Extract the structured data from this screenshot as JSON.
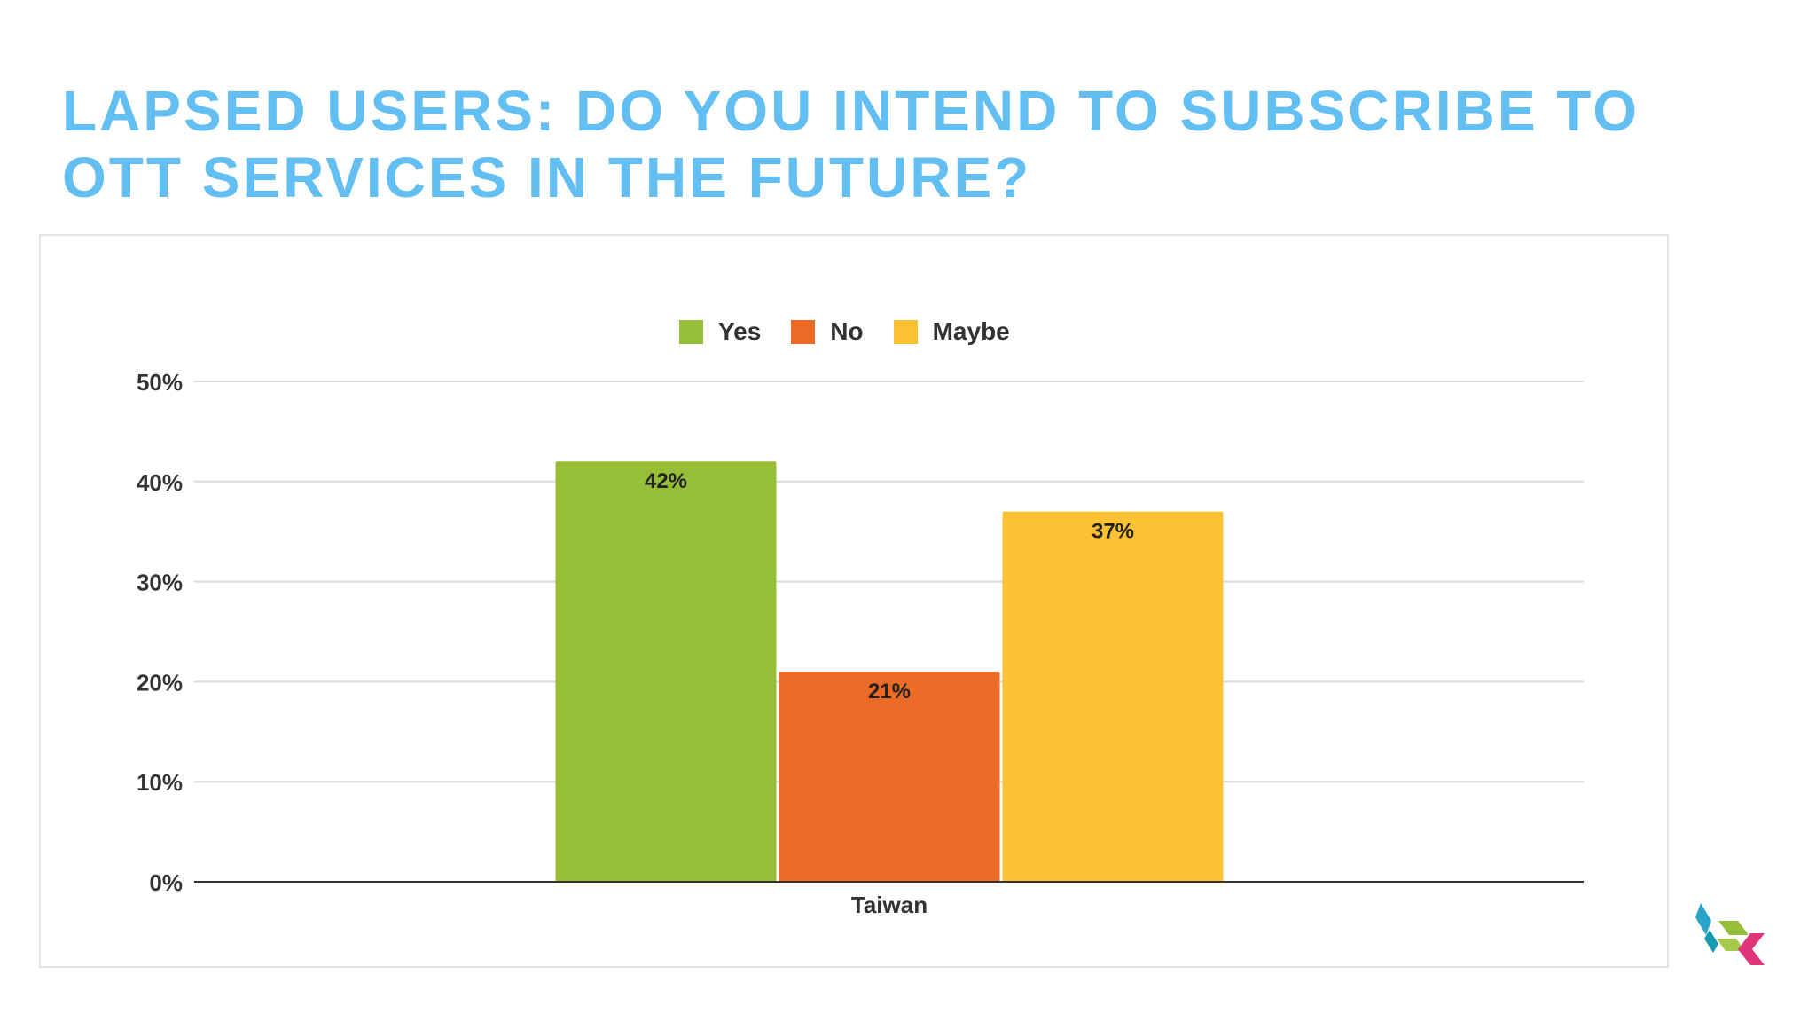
{
  "slide": {
    "title": "LAPSED USERS: DO YOU INTEND TO SUBSCRIBE TO OTT SERVICES IN THE FUTURE?"
  },
  "chart_data": {
    "type": "bar",
    "categories": [
      "Taiwan"
    ],
    "series": [
      {
        "name": "Yes",
        "values": [
          42
        ],
        "color": "#97be37",
        "label": "42%"
      },
      {
        "name": "No",
        "values": [
          21
        ],
        "color": "#eb6a26",
        "label": "21%"
      },
      {
        "name": "Maybe",
        "values": [
          37
        ],
        "color": "#fbc334",
        "label": "37%"
      }
    ],
    "yticks": [
      "0%",
      "10%",
      "20%",
      "30%",
      "40%",
      "50%"
    ],
    "ylim": [
      0,
      50
    ],
    "grid": true,
    "legend_position": "top-center"
  },
  "logo": {
    "icon": "company-logo-icon",
    "colors": [
      "#2aa3c8",
      "#97be37",
      "#e0357a"
    ]
  }
}
